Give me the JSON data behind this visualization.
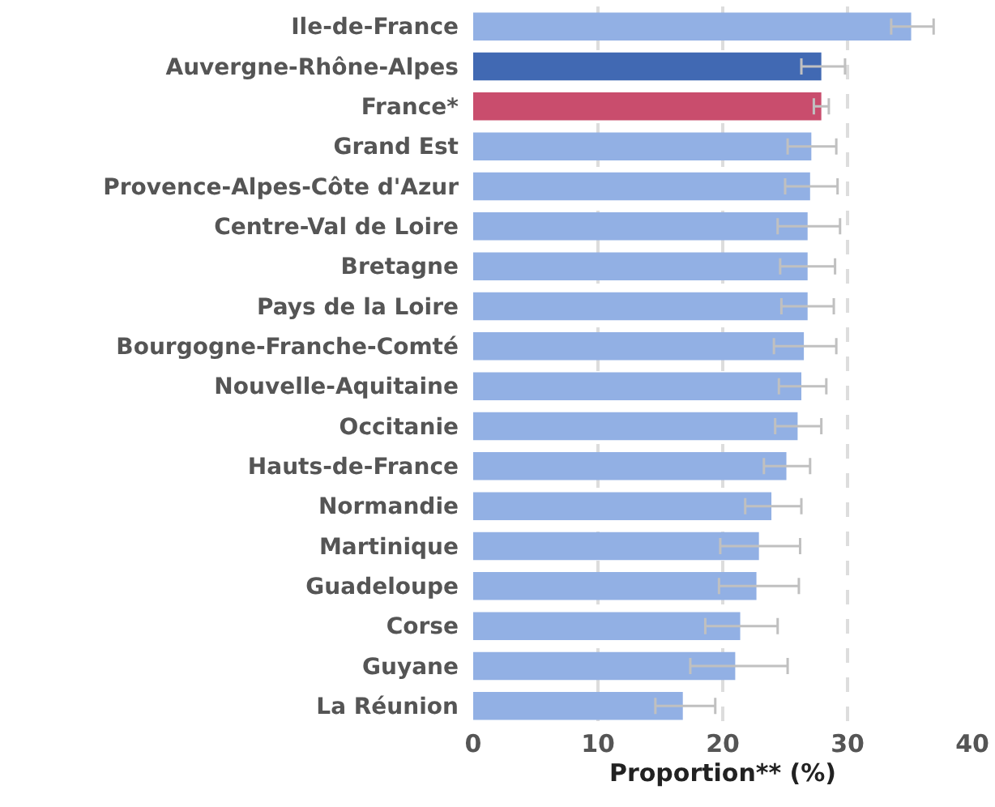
{
  "chart_data": {
    "type": "bar",
    "orientation": "horizontal",
    "xlabel": "Proportion** (%)",
    "categories": [
      "Ile-de-France",
      "Auvergne-Rhône-Alpes",
      "France*",
      "Grand Est",
      "Provence-Alpes-Côte d'Azur",
      "Centre-Val de Loire",
      "Bretagne",
      "Pays de la Loire",
      "Bourgogne-Franche-Comté",
      "Nouvelle-Aquitaine",
      "Occitanie",
      "Hauts-de-France",
      "Normandie",
      "Martinique",
      "Guadeloupe",
      "Corse",
      "Guyane",
      "La Réunion"
    ],
    "values": [
      35.1,
      27.9,
      27.9,
      27.1,
      27.0,
      26.8,
      26.8,
      26.8,
      26.5,
      26.3,
      26.0,
      25.1,
      23.9,
      22.9,
      22.7,
      21.4,
      21.0,
      16.8
    ],
    "errors": [
      [
        33.5,
        36.9
      ],
      [
        26.3,
        29.8
      ],
      [
        27.3,
        28.5
      ],
      [
        25.2,
        29.1
      ],
      [
        25.0,
        29.2
      ],
      [
        24.4,
        29.4
      ],
      [
        24.6,
        29.0
      ],
      [
        24.7,
        28.9
      ],
      [
        24.1,
        29.1
      ],
      [
        24.5,
        28.3
      ],
      [
        24.2,
        27.9
      ],
      [
        23.3,
        27.0
      ],
      [
        21.8,
        26.3
      ],
      [
        19.8,
        26.2
      ],
      [
        19.7,
        26.1
      ],
      [
        18.6,
        24.4
      ],
      [
        17.4,
        25.2
      ],
      [
        14.6,
        19.4
      ]
    ],
    "colors": [
      "#92b0e4",
      "#4169b3",
      "#c94d6d",
      "#92b0e4",
      "#92b0e4",
      "#92b0e4",
      "#92b0e4",
      "#92b0e4",
      "#92b0e4",
      "#92b0e4",
      "#92b0e4",
      "#92b0e4",
      "#92b0e4",
      "#92b0e4",
      "#92b0e4",
      "#92b0e4",
      "#92b0e4",
      "#92b0e4"
    ],
    "xlim": [
      0,
      40
    ],
    "xticks": [
      0,
      10,
      20,
      30,
      40
    ],
    "grid": "x"
  }
}
